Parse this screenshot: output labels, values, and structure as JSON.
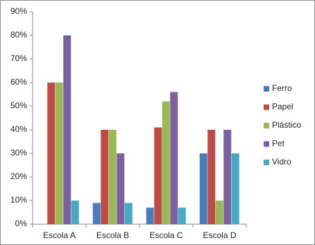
{
  "chart_data": {
    "type": "bar",
    "categories": [
      "Escola A",
      "Escola B",
      "Escola C",
      "Escola D"
    ],
    "series": [
      {
        "name": "Ferro",
        "color": "#4a7ebb",
        "values": [
          0,
          9,
          7,
          30
        ]
      },
      {
        "name": "Papel",
        "color": "#be4b48",
        "values": [
          60,
          40,
          41,
          40
        ]
      },
      {
        "name": "Plástico",
        "color": "#98b954",
        "values": [
          60,
          40,
          52,
          10
        ]
      },
      {
        "name": "Pet",
        "color": "#7d60a0",
        "values": [
          80,
          30,
          56,
          40
        ]
      },
      {
        "name": "Vidro",
        "color": "#46aac5",
        "values": [
          10,
          9,
          7,
          30
        ]
      }
    ],
    "ylim": [
      0,
      90
    ],
    "yticks": [
      {
        "value": 0,
        "label": "0%"
      },
      {
        "value": 10,
        "label": "10%"
      },
      {
        "value": 20,
        "label": "20%"
      },
      {
        "value": 30,
        "label": "30%"
      },
      {
        "value": 40,
        "label": "40%"
      },
      {
        "value": 50,
        "label": "50%"
      },
      {
        "value": 60,
        "label": "60%"
      },
      {
        "value": 70,
        "label": "70%"
      },
      {
        "value": 80,
        "label": "80%"
      },
      {
        "value": 90,
        "label": "90%"
      }
    ],
    "grid": false,
    "legend": "right"
  }
}
